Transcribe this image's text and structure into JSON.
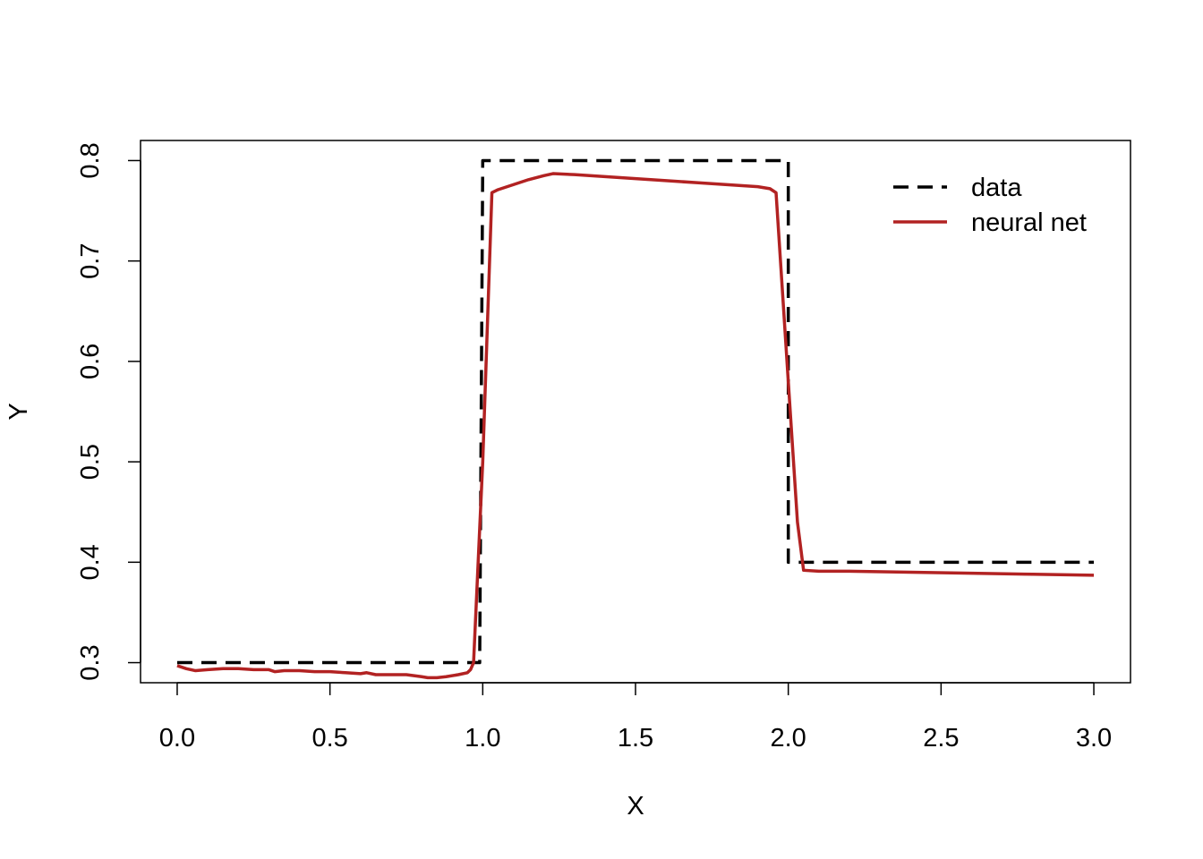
{
  "chart_data": {
    "type": "line",
    "title": "",
    "xlabel": "X",
    "ylabel": "Y",
    "xlim": [
      -0.12,
      3.12
    ],
    "ylim": [
      0.28,
      0.82
    ],
    "xticks": [
      "0.0",
      "0.5",
      "1.0",
      "1.5",
      "2.0",
      "2.5",
      "3.0"
    ],
    "xtick_values": [
      0.0,
      0.5,
      1.0,
      1.5,
      2.0,
      2.5,
      3.0
    ],
    "yticks": [
      "0.3",
      "0.4",
      "0.5",
      "0.6",
      "0.7",
      "0.8"
    ],
    "ytick_values": [
      0.3,
      0.4,
      0.5,
      0.6,
      0.7,
      0.8
    ],
    "grid": false,
    "legend_position": "top-right",
    "series": [
      {
        "name": "data",
        "color": "#000000",
        "style": "dashed",
        "x": [
          0.0,
          0.99,
          0.99,
          1.0,
          1.99,
          2.0,
          2.0,
          3.0
        ],
        "y": [
          0.3,
          0.3,
          0.3,
          0.8,
          0.8,
          0.8,
          0.4,
          0.4
        ]
      },
      {
        "name": "neural net",
        "color": "#B22222",
        "style": "solid",
        "x": [
          0.0,
          0.03,
          0.06,
          0.1,
          0.15,
          0.2,
          0.25,
          0.3,
          0.32,
          0.35,
          0.4,
          0.45,
          0.5,
          0.55,
          0.6,
          0.62,
          0.65,
          0.7,
          0.75,
          0.8,
          0.82,
          0.85,
          0.88,
          0.92,
          0.95,
          0.96,
          0.97,
          1.0,
          1.03,
          1.05,
          1.1,
          1.15,
          1.2,
          1.23,
          1.3,
          1.4,
          1.5,
          1.6,
          1.7,
          1.8,
          1.9,
          1.94,
          1.96,
          2.0,
          2.03,
          2.05,
          2.1,
          2.2,
          2.4,
          2.6,
          2.8,
          3.0
        ],
        "y": [
          0.297,
          0.294,
          0.292,
          0.293,
          0.294,
          0.294,
          0.293,
          0.293,
          0.291,
          0.292,
          0.292,
          0.291,
          0.291,
          0.29,
          0.289,
          0.29,
          0.288,
          0.288,
          0.288,
          0.286,
          0.285,
          0.285,
          0.286,
          0.288,
          0.29,
          0.293,
          0.3,
          0.5,
          0.768,
          0.771,
          0.776,
          0.781,
          0.785,
          0.787,
          0.786,
          0.784,
          0.782,
          0.78,
          0.778,
          0.776,
          0.774,
          0.772,
          0.768,
          0.58,
          0.44,
          0.392,
          0.391,
          0.391,
          0.39,
          0.389,
          0.388,
          0.387
        ]
      }
    ]
  }
}
